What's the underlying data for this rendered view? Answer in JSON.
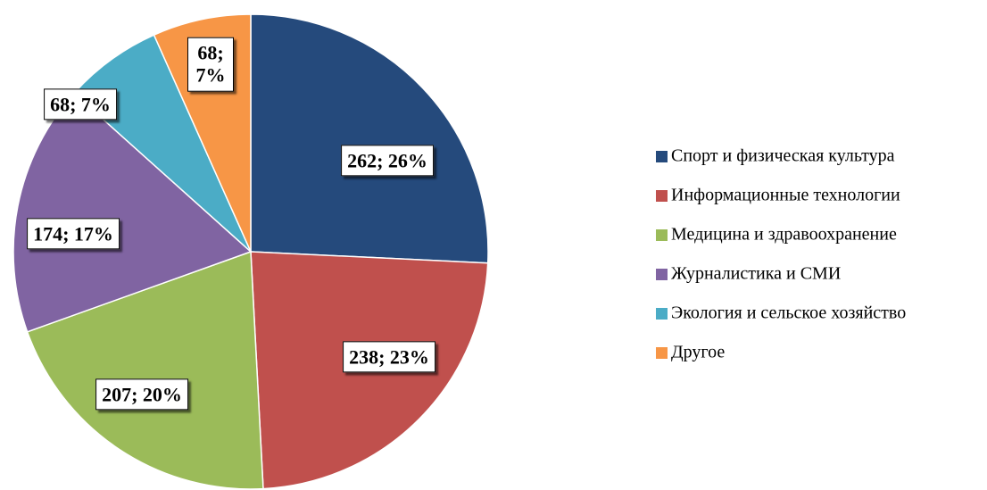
{
  "chart_data": {
    "type": "pie",
    "categories": [
      "Спорт и физическая культура",
      "Информационные технологии",
      "Медицина и здравоохранение",
      "Журналистика и СМИ",
      "Экология и сельское хозяйство",
      "Другое"
    ],
    "values": [
      262,
      238,
      207,
      174,
      68,
      68
    ],
    "value_labels": [
      "262; 26%",
      "238; 23%",
      "207; 20%",
      "174; 17%",
      "68; 7%",
      "68; 7%"
    ],
    "colors": [
      "#254a7c",
      "#c0504d",
      "#9bbb59",
      "#8064a2",
      "#4bacc6",
      "#f79646"
    ],
    "legend": "right"
  }
}
